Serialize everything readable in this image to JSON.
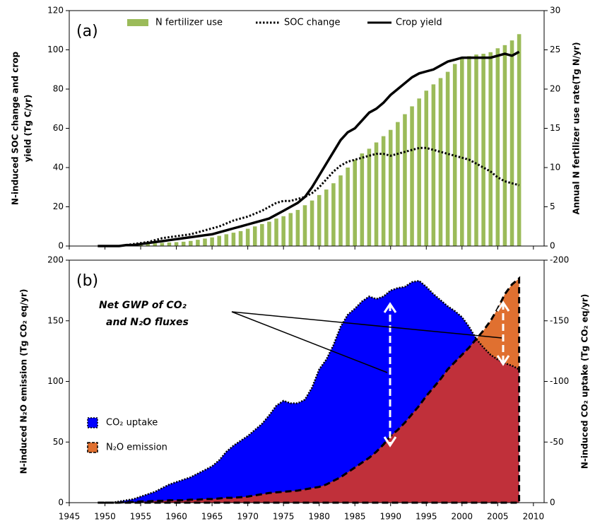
{
  "chart_data": [
    {
      "type": "bar-line",
      "panel": "(a)",
      "ylabel": [
        "N-induced SOC change  and crop",
        "yield (Tg C/yr)"
      ],
      "y2label": "Annual N fertilizer use rate(Tg N/yr)",
      "xlim": [
        1945,
        2011.5
      ],
      "ylim": [
        0,
        120
      ],
      "yticks": [
        0,
        20,
        40,
        60,
        80,
        100,
        120
      ],
      "y2lim": [
        0,
        30
      ],
      "y2ticks": [
        0,
        5,
        10,
        15,
        20,
        25,
        30
      ],
      "x": [
        1949,
        1950,
        1951,
        1952,
        1953,
        1954,
        1955,
        1956,
        1957,
        1958,
        1959,
        1960,
        1961,
        1962,
        1963,
        1964,
        1965,
        1966,
        1967,
        1968,
        1969,
        1970,
        1971,
        1972,
        1973,
        1974,
        1975,
        1976,
        1977,
        1978,
        1979,
        1980,
        1981,
        1982,
        1983,
        1984,
        1985,
        1986,
        1987,
        1988,
        1989,
        1990,
        1991,
        1992,
        1993,
        1994,
        1995,
        1996,
        1997,
        1998,
        1999,
        2000,
        2001,
        2002,
        2003,
        2004,
        2005,
        2006,
        2007,
        2008
      ],
      "series": [
        {
          "name": "N fertilizer use",
          "color": "#9bbb59",
          "axis": "y2",
          "style": "bar",
          "values": [
            0,
            0,
            0,
            0.05,
            0.1,
            0.15,
            0.2,
            0.3,
            0.35,
            0.4,
            0.45,
            0.5,
            0.55,
            0.65,
            0.8,
            0.95,
            1.1,
            1.3,
            1.5,
            1.7,
            1.9,
            2.2,
            2.5,
            2.8,
            3.1,
            3.5,
            3.8,
            4.2,
            4.6,
            5.2,
            5.8,
            6.5,
            7.2,
            8,
            9,
            10,
            11,
            11.8,
            12.4,
            13.2,
            14,
            14.8,
            15.8,
            16.8,
            17.8,
            18.8,
            19.8,
            20.6,
            21.4,
            22.2,
            23.2,
            24,
            24.2,
            24.4,
            24.5,
            24.7,
            25.2,
            25.6,
            26.2,
            27
          ]
        },
        {
          "name": "SOC change",
          "color": "#000000",
          "style": "dotted",
          "values": [
            0,
            0,
            0,
            0,
            0.5,
            1,
            1.5,
            2,
            3,
            4,
            4.5,
            5,
            5.5,
            6,
            7,
            8,
            9,
            10,
            11.5,
            13,
            14,
            15,
            16.5,
            18,
            20,
            22,
            23,
            23,
            24,
            25,
            27,
            30,
            34,
            38,
            41,
            43,
            44,
            45,
            46,
            47,
            47,
            46,
            47,
            48,
            49,
            50,
            50,
            49,
            48,
            47,
            46,
            45,
            44,
            42,
            40,
            38,
            35,
            33,
            32,
            31
          ]
        },
        {
          "name": "Crop yield",
          "color": "#000000",
          "style": "solid",
          "values": [
            0,
            0,
            0,
            0,
            0.5,
            0.5,
            1,
            1.5,
            2,
            2.5,
            3,
            3.5,
            4,
            4.5,
            5,
            5.5,
            6,
            7,
            8,
            9,
            10,
            11,
            12,
            13,
            14,
            16,
            18,
            20,
            22,
            25,
            30,
            36,
            42,
            48,
            54,
            58,
            60,
            64,
            68,
            70,
            73,
            77,
            80,
            83,
            86,
            88,
            89,
            90,
            92,
            94,
            95,
            96,
            96,
            96,
            96,
            96,
            97,
            98,
            97,
            99
          ]
        }
      ]
    },
    {
      "type": "area",
      "panel": "(b)",
      "ylabel": "N-induced N₂O emission (Tg CO₂ eq/yr)",
      "y2label": "N-induced CO₂ uptake (Tg CO₂ eq/yr)",
      "annotation": [
        "Net GWP of CO₂",
        "and N₂O fluxes"
      ],
      "xlim": [
        1945,
        2011.5
      ],
      "xticks": [
        1945,
        1950,
        1955,
        1960,
        1965,
        1970,
        1975,
        1980,
        1985,
        1990,
        1995,
        2000,
        2005,
        2010
      ],
      "ylim": [
        0,
        200
      ],
      "yticks": [
        0,
        50,
        100,
        150,
        200
      ],
      "y2lim": [
        0,
        -200
      ],
      "y2ticks": [
        0,
        -50,
        -100,
        -150,
        -200
      ],
      "x": [
        1949,
        1950,
        1951,
        1952,
        1953,
        1954,
        1955,
        1956,
        1957,
        1958,
        1959,
        1960,
        1961,
        1962,
        1963,
        1964,
        1965,
        1966,
        1967,
        1968,
        1969,
        1970,
        1971,
        1972,
        1973,
        1974,
        1975,
        1976,
        1977,
        1978,
        1979,
        1980,
        1981,
        1982,
        1983,
        1984,
        1985,
        1986,
        1987,
        1988,
        1989,
        1990,
        1991,
        1992,
        1993,
        1994,
        1995,
        1996,
        1997,
        1998,
        1999,
        2000,
        2001,
        2002,
        2003,
        2004,
        2005,
        2006,
        2007,
        2008
      ],
      "series": [
        {
          "name": "CO₂ uptake",
          "color": "#0000ff",
          "axis": "y2",
          "values": [
            0,
            0,
            0,
            -1,
            -2,
            -3,
            -5,
            -7,
            -9,
            -12,
            -15,
            -17,
            -19,
            -21,
            -24,
            -27,
            -30,
            -35,
            -42,
            -47,
            -51,
            -55,
            -60,
            -65,
            -72,
            -80,
            -84,
            -82,
            -82,
            -85,
            -95,
            -110,
            -118,
            -130,
            -145,
            -155,
            -160,
            -166,
            -170,
            -168,
            -170,
            -175,
            -177,
            -178,
            -182,
            -183,
            -178,
            -172,
            -167,
            -162,
            -158,
            -153,
            -145,
            -135,
            -128,
            -122,
            -118,
            -115,
            -113,
            -110
          ]
        },
        {
          "name": "N₂O emission",
          "color": "#e07030",
          "color_under": "#c0303a",
          "values": [
            0,
            0,
            0,
            0,
            0.5,
            0.5,
            1,
            1,
            1.5,
            1.5,
            2,
            2,
            2,
            2.5,
            2.5,
            3,
            3,
            3.5,
            4,
            4,
            4.5,
            5,
            6,
            7,
            8,
            8.5,
            9,
            9.5,
            10,
            11,
            12,
            13,
            15,
            18,
            21,
            25,
            29,
            33,
            37,
            42,
            48,
            55,
            60,
            66,
            73,
            80,
            88,
            95,
            102,
            110,
            116,
            122,
            128,
            135,
            142,
            150,
            160,
            172,
            180,
            185
          ]
        }
      ]
    }
  ]
}
